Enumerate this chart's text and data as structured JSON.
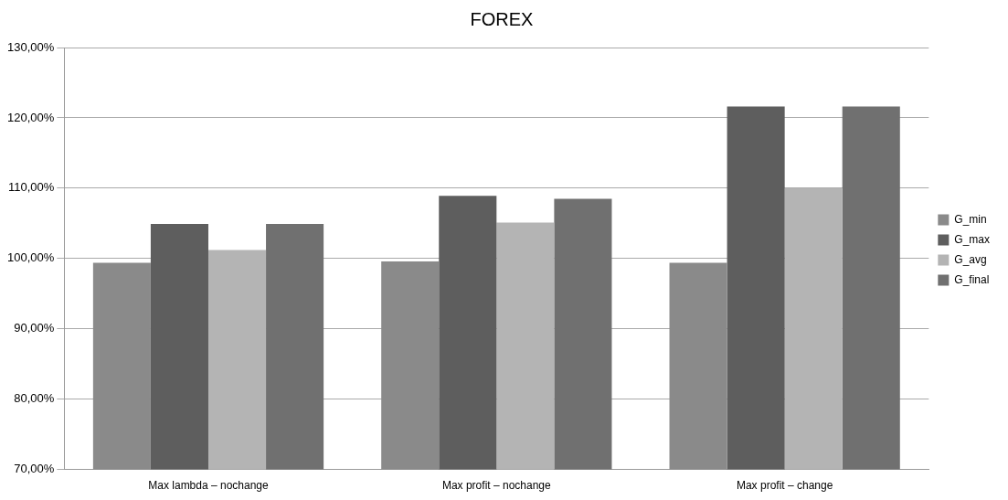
{
  "chart_data": {
    "type": "bar",
    "title": "FOREX",
    "categories": [
      "Max lambda – nochange",
      "Max profit – nochange",
      "Max profit – change"
    ],
    "series": [
      {
        "name": "G_min",
        "color": "#8a8a8a",
        "values": [
          99.4,
          99.6,
          99.4
        ]
      },
      {
        "name": "G_max",
        "color": "#5e5e5e",
        "values": [
          104.9,
          108.9,
          121.6
        ]
      },
      {
        "name": "G_avg",
        "color": "#b4b4b4",
        "values": [
          101.2,
          105.1,
          110.0
        ]
      },
      {
        "name": "G_final",
        "color": "#707070",
        "values": [
          104.9,
          108.5,
          121.6
        ]
      }
    ],
    "ylim": [
      70,
      130
    ],
    "yticks": [
      {
        "value": 70,
        "label": "70,00%"
      },
      {
        "value": 80,
        "label": "80,00%"
      },
      {
        "value": 90,
        "label": "90,00%"
      },
      {
        "value": 100,
        "label": "100,00%"
      },
      {
        "value": 110,
        "label": "110,00%"
      },
      {
        "value": 120,
        "label": "120,00%"
      },
      {
        "value": 130,
        "label": "130,00%"
      }
    ],
    "grid": "y",
    "legend": "right"
  }
}
